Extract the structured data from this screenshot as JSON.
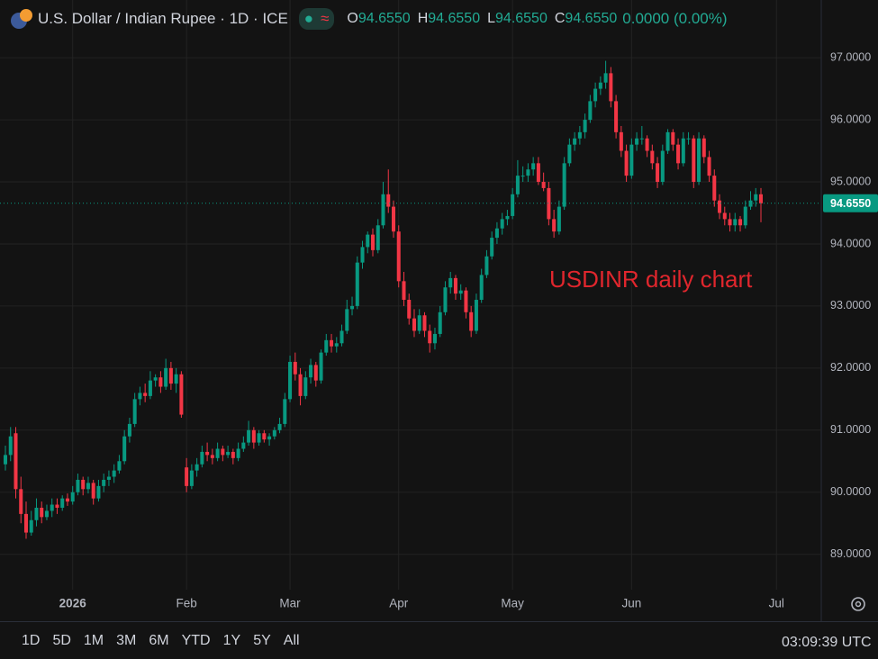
{
  "header": {
    "title": "U.S. Dollar / Indian Rupee · 1D · ICE",
    "stats": [
      {
        "label": "O",
        "value": "94.6550"
      },
      {
        "label": "H",
        "value": "94.6550"
      },
      {
        "label": "L",
        "value": "94.6550"
      },
      {
        "label": "C",
        "value": "94.6550"
      }
    ],
    "change": "0.0000 (0.00%)"
  },
  "toolbar": {
    "ranges": [
      "1D",
      "5D",
      "1M",
      "3M",
      "6M",
      "YTD",
      "1Y",
      "5Y",
      "All"
    ],
    "clock": "03:09:39 UTC"
  },
  "chart_data": {
    "type": "candlestick",
    "up_color": "#089981",
    "down_color": "#f23645",
    "annotation": "USDINR daily chart",
    "last_price": {
      "value": 94.655,
      "label": "94.6550"
    },
    "ylim": [
      88.43,
      97.93
    ],
    "yticks": [
      {
        "value": 89,
        "label": "89.0000"
      },
      {
        "value": 90,
        "label": "90.0000"
      },
      {
        "value": 91,
        "label": "91.0000"
      },
      {
        "value": 92,
        "label": "92.0000"
      },
      {
        "value": 93,
        "label": "93.0000"
      },
      {
        "value": 94,
        "label": "94.0000"
      },
      {
        "value": 95,
        "label": "95.0000"
      },
      {
        "value": 96,
        "label": "96.0000"
      },
      {
        "value": 97,
        "label": "97.0000"
      }
    ],
    "grid": true,
    "categories": [
      null,
      null,
      null,
      null,
      null,
      null,
      null,
      null,
      null,
      null,
      null,
      null,
      null,
      "2026",
      null,
      null,
      null,
      null,
      null,
      null,
      null,
      null,
      null,
      null,
      null,
      null,
      null,
      null,
      null,
      null,
      null,
      null,
      null,
      null,
      null,
      "Feb",
      null,
      null,
      null,
      null,
      null,
      null,
      null,
      null,
      null,
      null,
      null,
      null,
      null,
      null,
      null,
      null,
      null,
      null,
      null,
      "Mar",
      null,
      null,
      null,
      null,
      null,
      null,
      null,
      null,
      null,
      null,
      null,
      null,
      null,
      null,
      null,
      null,
      null,
      null,
      null,
      null,
      "Apr",
      null,
      null,
      null,
      null,
      null,
      null,
      null,
      null,
      null,
      null,
      null,
      null,
      null,
      null,
      null,
      null,
      null,
      null,
      null,
      null,
      null,
      "May",
      null,
      null,
      null,
      null,
      null,
      null,
      null,
      null,
      null,
      null,
      null,
      null,
      null,
      null,
      null,
      null,
      null,
      null,
      null,
      null,
      null,
      null,
      "Jun",
      null,
      null,
      null,
      null,
      null,
      null,
      null,
      null,
      null,
      null,
      null,
      null,
      null,
      null,
      null,
      null,
      null,
      null,
      null,
      null,
      null,
      null,
      null,
      null,
      null,
      null,
      null,
      "Jul"
    ],
    "ohlc": [
      [
        90.45,
        90.75,
        90.35,
        90.6
      ],
      [
        90.6,
        91.05,
        90.5,
        90.9
      ],
      [
        90.95,
        91.05,
        89.9,
        90.05
      ],
      [
        90.05,
        90.25,
        89.5,
        89.65
      ],
      [
        89.65,
        89.85,
        89.25,
        89.35
      ],
      [
        89.35,
        89.7,
        89.3,
        89.55
      ],
      [
        89.55,
        89.9,
        89.45,
        89.75
      ],
      [
        89.75,
        89.85,
        89.5,
        89.6
      ],
      [
        89.6,
        89.8,
        89.55,
        89.7
      ],
      [
        89.7,
        89.9,
        89.6,
        89.8
      ],
      [
        89.8,
        89.9,
        89.65,
        89.75
      ],
      [
        89.75,
        89.95,
        89.7,
        89.9
      ],
      [
        89.9,
        89.98,
        89.78,
        89.85
      ],
      [
        89.85,
        90.1,
        89.8,
        90.0
      ],
      [
        90.0,
        90.3,
        89.95,
        90.2
      ],
      [
        90.2,
        90.25,
        89.95,
        90.05
      ],
      [
        90.05,
        90.25,
        89.98,
        90.15
      ],
      [
        90.15,
        90.2,
        89.8,
        89.9
      ],
      [
        89.9,
        90.2,
        89.85,
        90.1
      ],
      [
        90.1,
        90.3,
        90.0,
        90.2
      ],
      [
        90.2,
        90.35,
        90.1,
        90.25
      ],
      [
        90.25,
        90.45,
        90.15,
        90.35
      ],
      [
        90.35,
        90.6,
        90.3,
        90.5
      ],
      [
        90.5,
        91.0,
        90.45,
        90.9
      ],
      [
        90.9,
        91.2,
        90.8,
        91.1
      ],
      [
        91.1,
        91.6,
        91.05,
        91.5
      ],
      [
        91.5,
        91.7,
        91.4,
        91.6
      ],
      [
        91.6,
        91.75,
        91.45,
        91.55
      ],
      [
        91.55,
        91.95,
        91.5,
        91.8
      ],
      [
        91.8,
        91.9,
        91.7,
        91.85
      ],
      [
        91.85,
        91.95,
        91.6,
        91.7
      ],
      [
        91.7,
        92.15,
        91.65,
        92.0
      ],
      [
        92.0,
        92.1,
        91.65,
        91.75
      ],
      [
        91.75,
        92.0,
        91.6,
        91.9
      ],
      [
        91.9,
        91.95,
        91.2,
        91.25
      ],
      [
        90.4,
        90.55,
        90.0,
        90.1
      ],
      [
        90.1,
        90.45,
        90.05,
        90.35
      ],
      [
        90.35,
        90.55,
        90.25,
        90.45
      ],
      [
        90.45,
        90.75,
        90.4,
        90.65
      ],
      [
        90.65,
        90.8,
        90.5,
        90.6
      ],
      [
        90.6,
        90.7,
        90.45,
        90.55
      ],
      [
        90.55,
        90.8,
        90.5,
        90.7
      ],
      [
        90.7,
        90.75,
        90.5,
        90.6
      ],
      [
        90.6,
        90.75,
        90.55,
        90.65
      ],
      [
        90.65,
        90.7,
        90.45,
        90.55
      ],
      [
        90.55,
        90.8,
        90.5,
        90.7
      ],
      [
        90.7,
        90.9,
        90.65,
        90.8
      ],
      [
        90.8,
        91.15,
        90.75,
        91.0
      ],
      [
        91.0,
        91.05,
        90.7,
        90.8
      ],
      [
        90.8,
        91.0,
        90.75,
        90.95
      ],
      [
        90.95,
        91.0,
        90.8,
        90.85
      ],
      [
        90.85,
        90.95,
        90.75,
        90.9
      ],
      [
        90.9,
        91.05,
        90.85,
        91.0
      ],
      [
        91.0,
        91.2,
        90.95,
        91.1
      ],
      [
        91.1,
        91.6,
        91.05,
        91.5
      ],
      [
        91.5,
        92.2,
        91.45,
        92.1
      ],
      [
        92.1,
        92.25,
        91.8,
        91.9
      ],
      [
        91.9,
        92.0,
        91.4,
        91.55
      ],
      [
        91.55,
        91.95,
        91.5,
        91.85
      ],
      [
        91.85,
        92.15,
        91.75,
        92.05
      ],
      [
        92.05,
        92.1,
        91.7,
        91.8
      ],
      [
        91.8,
        92.3,
        91.75,
        92.25
      ],
      [
        92.25,
        92.55,
        92.2,
        92.45
      ],
      [
        92.45,
        92.55,
        92.25,
        92.35
      ],
      [
        92.35,
        92.5,
        92.25,
        92.4
      ],
      [
        92.4,
        92.7,
        92.35,
        92.6
      ],
      [
        92.6,
        93.1,
        92.55,
        92.95
      ],
      [
        92.95,
        93.15,
        92.85,
        93.0
      ],
      [
        93.0,
        93.8,
        92.95,
        93.7
      ],
      [
        93.7,
        94.05,
        93.6,
        93.95
      ],
      [
        93.95,
        94.2,
        93.85,
        94.15
      ],
      [
        94.15,
        94.25,
        93.8,
        93.9
      ],
      [
        93.9,
        94.4,
        93.85,
        94.3
      ],
      [
        94.3,
        95.0,
        94.25,
        94.8
      ],
      [
        94.8,
        95.2,
        94.5,
        94.6
      ],
      [
        94.6,
        94.7,
        94.1,
        94.2
      ],
      [
        94.2,
        94.3,
        93.3,
        93.4
      ],
      [
        93.4,
        93.55,
        93.0,
        93.1
      ],
      [
        93.1,
        93.2,
        92.7,
        92.8
      ],
      [
        92.8,
        92.95,
        92.5,
        92.6
      ],
      [
        92.6,
        92.95,
        92.55,
        92.85
      ],
      [
        92.85,
        92.9,
        92.5,
        92.6
      ],
      [
        92.6,
        92.7,
        92.25,
        92.4
      ],
      [
        92.4,
        92.65,
        92.3,
        92.55
      ],
      [
        92.55,
        93.0,
        92.5,
        92.9
      ],
      [
        92.9,
        93.4,
        92.85,
        93.3
      ],
      [
        93.3,
        93.55,
        93.2,
        93.45
      ],
      [
        93.45,
        93.5,
        93.1,
        93.2
      ],
      [
        93.2,
        93.35,
        93.1,
        93.25
      ],
      [
        93.25,
        93.3,
        92.8,
        92.9
      ],
      [
        92.9,
        93.0,
        92.5,
        92.6
      ],
      [
        92.6,
        93.2,
        92.55,
        93.1
      ],
      [
        93.1,
        93.6,
        93.05,
        93.5
      ],
      [
        93.5,
        93.9,
        93.45,
        93.8
      ],
      [
        93.8,
        94.2,
        93.75,
        94.1
      ],
      [
        94.1,
        94.35,
        94.0,
        94.25
      ],
      [
        94.25,
        94.5,
        94.15,
        94.4
      ],
      [
        94.4,
        94.55,
        94.3,
        94.45
      ],
      [
        94.45,
        94.9,
        94.4,
        94.8
      ],
      [
        94.8,
        95.35,
        94.75,
        95.1
      ],
      [
        95.1,
        95.25,
        95.0,
        95.1
      ],
      [
        95.1,
        95.3,
        95.0,
        95.2
      ],
      [
        95.2,
        95.4,
        95.1,
        95.3
      ],
      [
        95.3,
        95.4,
        94.95,
        95.0
      ],
      [
        95.0,
        95.15,
        94.85,
        94.9
      ],
      [
        94.9,
        95.0,
        94.3,
        94.4
      ],
      [
        94.4,
        94.55,
        94.1,
        94.2
      ],
      [
        94.2,
        94.7,
        94.15,
        94.6
      ],
      [
        94.6,
        95.4,
        94.55,
        95.3
      ],
      [
        95.3,
        95.7,
        95.25,
        95.6
      ],
      [
        95.6,
        95.8,
        95.5,
        95.7
      ],
      [
        95.7,
        95.9,
        95.6,
        95.8
      ],
      [
        95.8,
        96.1,
        95.7,
        96.0
      ],
      [
        96.0,
        96.4,
        95.95,
        96.3
      ],
      [
        96.3,
        96.6,
        96.2,
        96.5
      ],
      [
        96.5,
        96.7,
        96.4,
        96.6
      ],
      [
        96.6,
        96.95,
        96.5,
        96.75
      ],
      [
        96.75,
        96.85,
        96.2,
        96.3
      ],
      [
        96.3,
        96.4,
        95.7,
        95.8
      ],
      [
        95.8,
        95.9,
        95.4,
        95.5
      ],
      [
        95.5,
        95.6,
        95.0,
        95.1
      ],
      [
        95.1,
        95.7,
        95.05,
        95.6
      ],
      [
        95.6,
        95.8,
        95.5,
        95.7
      ],
      [
        95.7,
        95.9,
        95.6,
        95.7
      ],
      [
        95.7,
        95.75,
        95.4,
        95.5
      ],
      [
        95.5,
        95.6,
        95.2,
        95.3
      ],
      [
        95.3,
        95.4,
        94.9,
        95.0
      ],
      [
        95.0,
        95.6,
        94.95,
        95.5
      ],
      [
        95.5,
        95.85,
        95.45,
        95.8
      ],
      [
        95.8,
        95.85,
        95.5,
        95.6
      ],
      [
        95.6,
        95.7,
        95.2,
        95.3
      ],
      [
        95.3,
        95.8,
        95.25,
        95.7
      ],
      [
        95.7,
        95.8,
        95.6,
        95.7
      ],
      [
        95.7,
        95.75,
        94.9,
        95.0
      ],
      [
        95.0,
        95.8,
        94.95,
        95.7
      ],
      [
        95.7,
        95.75,
        95.3,
        95.4
      ],
      [
        95.4,
        95.5,
        95.0,
        95.1
      ],
      [
        95.1,
        95.2,
        94.6,
        94.7
      ],
      [
        94.7,
        94.8,
        94.4,
        94.5
      ],
      [
        94.5,
        94.6,
        94.3,
        94.4
      ],
      [
        94.4,
        94.5,
        94.2,
        94.3
      ],
      [
        94.3,
        94.5,
        94.2,
        94.4
      ],
      [
        94.4,
        94.45,
        94.2,
        94.3
      ],
      [
        94.3,
        94.7,
        94.25,
        94.6
      ],
      [
        94.6,
        94.85,
        94.55,
        94.7
      ],
      [
        94.7,
        94.9,
        94.6,
        94.8
      ],
      [
        94.8,
        94.9,
        94.35,
        94.655
      ],
      null,
      null,
      null,
      null,
      null
    ]
  }
}
